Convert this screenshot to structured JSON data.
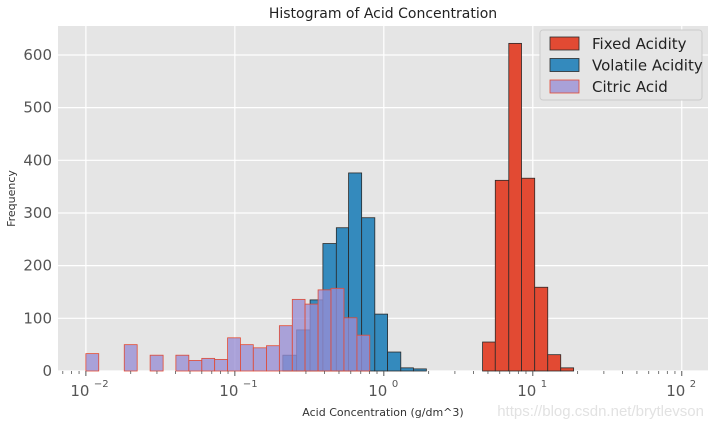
{
  "watermark": "https://blog.csdn.net/brytlevson",
  "chart_data": {
    "type": "histogram",
    "title": "Histogram of Acid Concentration",
    "xlabel": "Acid Concentration (g/dm^3)",
    "ylabel": "Frequency",
    "xscale": "log",
    "xlim": [
      0.0065,
      150
    ],
    "ylim": [
      0,
      655
    ],
    "yticks": [
      0,
      100,
      200,
      300,
      400,
      500,
      600
    ],
    "xtick_labels": [
      {
        "base": "10",
        "exp": "−2",
        "value": 0.01
      },
      {
        "base": "10",
        "exp": "−1",
        "value": 0.1
      },
      {
        "base": "10",
        "exp": "0",
        "value": 1
      },
      {
        "base": "10",
        "exp": "1",
        "value": 10
      },
      {
        "base": "10",
        "exp": "2",
        "value": 100
      }
    ],
    "legend_position": "top-right",
    "series": [
      {
        "name": "Fixed Acidity",
        "color": "#e24a33",
        "edge": "#2a2a2a",
        "alpha": 1,
        "bins": [
          {
            "lo": 4.6,
            "hi": 5.6,
            "count": 55
          },
          {
            "lo": 5.6,
            "hi": 6.9,
            "count": 362
          },
          {
            "lo": 6.9,
            "hi": 8.4,
            "count": 622
          },
          {
            "lo": 8.4,
            "hi": 10.3,
            "count": 366
          },
          {
            "lo": 10.3,
            "hi": 12.6,
            "count": 159
          },
          {
            "lo": 12.6,
            "hi": 15.4,
            "count": 31
          },
          {
            "lo": 15.4,
            "hi": 18.8,
            "count": 6
          }
        ]
      },
      {
        "name": "Volatile Acidity",
        "color": "#348abd",
        "edge": "#2a2a2a",
        "alpha": 1,
        "bins": [
          {
            "lo": 0.21,
            "hi": 0.26,
            "count": 30
          },
          {
            "lo": 0.26,
            "hi": 0.32,
            "count": 78
          },
          {
            "lo": 0.32,
            "hi": 0.39,
            "count": 135
          },
          {
            "lo": 0.39,
            "hi": 0.48,
            "count": 242
          },
          {
            "lo": 0.48,
            "hi": 0.58,
            "count": 272
          },
          {
            "lo": 0.58,
            "hi": 0.71,
            "count": 376
          },
          {
            "lo": 0.71,
            "hi": 0.87,
            "count": 291
          },
          {
            "lo": 0.87,
            "hi": 1.06,
            "count": 108
          },
          {
            "lo": 1.06,
            "hi": 1.3,
            "count": 36
          },
          {
            "lo": 1.3,
            "hi": 1.58,
            "count": 6
          },
          {
            "lo": 1.58,
            "hi": 1.93,
            "count": 4
          }
        ]
      },
      {
        "name": "Citric Acid",
        "color": "#988ed5",
        "edge": "#e24a33",
        "alpha": 0.78,
        "bins": [
          {
            "lo": 0.01,
            "hi": 0.0122,
            "count": 33
          },
          {
            "lo": 0.0181,
            "hi": 0.0221,
            "count": 50
          },
          {
            "lo": 0.027,
            "hi": 0.033,
            "count": 30
          },
          {
            "lo": 0.0402,
            "hi": 0.0491,
            "count": 30
          },
          {
            "lo": 0.0491,
            "hi": 0.06,
            "count": 20
          },
          {
            "lo": 0.06,
            "hi": 0.0732,
            "count": 24
          },
          {
            "lo": 0.0732,
            "hi": 0.0894,
            "count": 22
          },
          {
            "lo": 0.0894,
            "hi": 0.109,
            "count": 63
          },
          {
            "lo": 0.109,
            "hi": 0.133,
            "count": 50
          },
          {
            "lo": 0.133,
            "hi": 0.163,
            "count": 44
          },
          {
            "lo": 0.163,
            "hi": 0.199,
            "count": 48
          },
          {
            "lo": 0.199,
            "hi": 0.243,
            "count": 86
          },
          {
            "lo": 0.243,
            "hi": 0.296,
            "count": 136
          },
          {
            "lo": 0.296,
            "hi": 0.362,
            "count": 127
          },
          {
            "lo": 0.362,
            "hi": 0.442,
            "count": 154
          },
          {
            "lo": 0.442,
            "hi": 0.54,
            "count": 157
          },
          {
            "lo": 0.54,
            "hi": 0.66,
            "count": 101
          },
          {
            "lo": 0.66,
            "hi": 0.805,
            "count": 68
          }
        ]
      }
    ]
  }
}
